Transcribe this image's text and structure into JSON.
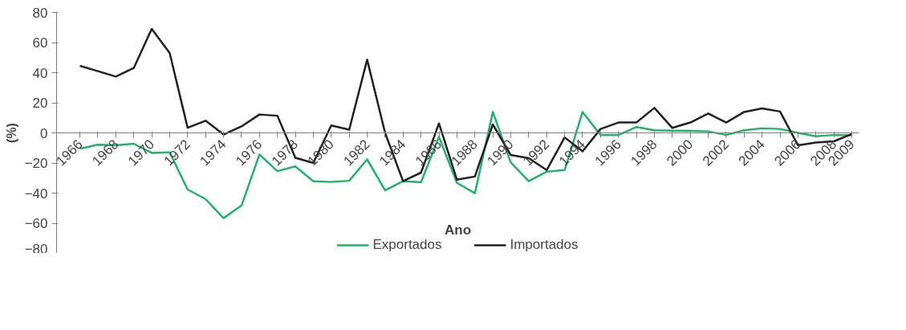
{
  "chart_data": {
    "type": "line",
    "xlabel": "Ano",
    "ylabel": "(%)",
    "categories": [
      "1966",
      null,
      "1968",
      null,
      "1970",
      null,
      "1972",
      null,
      "1974",
      null,
      "1976",
      null,
      "1978",
      null,
      "1980",
      null,
      "1982",
      null,
      "1984",
      null,
      "1986",
      null,
      "1988",
      null,
      "1990",
      null,
      "1992",
      null,
      "1994",
      null,
      "1996",
      null,
      "1998",
      null,
      "2000",
      null,
      "2002",
      null,
      "2004",
      null,
      "2006",
      null,
      "2008",
      "2009"
    ],
    "series": [
      {
        "name": "Exportados",
        "color": "#1fb36b",
        "values": [
          -10.5,
          -7.9,
          -8.3,
          -7.2,
          -13.3,
          -12.9,
          -37.6,
          -44,
          -56.6,
          -48.3,
          -14.3,
          -25.4,
          -22.3,
          -32.1,
          -32.6,
          -31.8,
          -17.6,
          -38.2,
          -32.1,
          -32.8,
          -2.6,
          -33.2,
          -40.1,
          13.9,
          -19.7,
          -32.1,
          -25.8,
          -24.7,
          13.9,
          -1.4,
          -1.4,
          3.9,
          1.7,
          1.5,
          1.3,
          1.0,
          -1.4,
          1.7,
          3.0,
          2.6,
          0,
          -2.3,
          -1.4,
          -1.6
        ]
      },
      {
        "name": "Importados",
        "color": "#231f20",
        "values": [
          44.5,
          41,
          37.4,
          43.1,
          69.1,
          53.1,
          3.4,
          8.1,
          -1.1,
          4.3,
          12.2,
          11.4,
          -16.5,
          -20,
          4.9,
          2.1,
          48.6,
          0,
          -32.1,
          -26.4,
          6.3,
          -31.1,
          -29,
          5.6,
          -14.7,
          -16.8,
          -24.7,
          -3,
          -12.3,
          2.6,
          6.9,
          6.9,
          16.6,
          3.3,
          6.9,
          12.9,
          6.9,
          13.9,
          16.3,
          14.2,
          -8.3,
          -6.4,
          -5.6,
          -0.7
        ]
      }
    ],
    "ylim": [
      -80,
      80
    ],
    "yticks": [
      -80,
      -60,
      -40,
      -20,
      0,
      20,
      40,
      60,
      80
    ],
    "grid": false,
    "legend": "bottom",
    "marker": "none",
    "line_style": "solid"
  }
}
